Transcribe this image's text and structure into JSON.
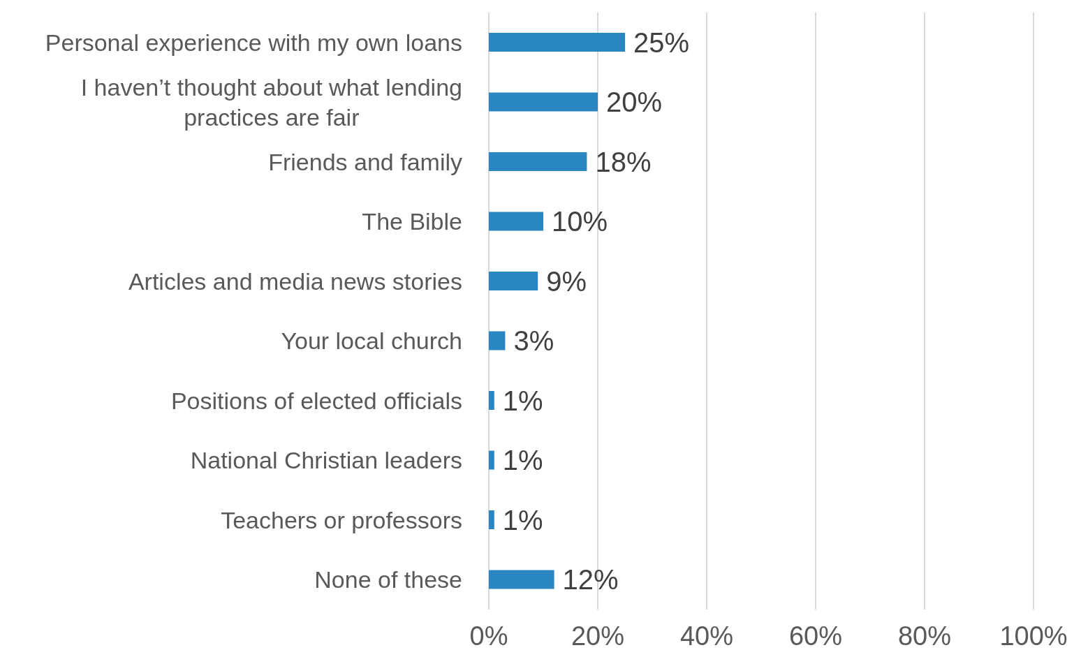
{
  "chart_data": {
    "type": "bar",
    "orientation": "horizontal",
    "categories": [
      "Personal experience with my own loans",
      "I haven’t thought about what lending practices are fair",
      "Friends and family",
      "The Bible",
      "Articles and media news stories",
      "Your local church",
      "Positions of elected officials",
      "National Christian leaders",
      "Teachers or professors",
      "None of these"
    ],
    "values": [
      25,
      20,
      18,
      10,
      9,
      3,
      1,
      1,
      1,
      12
    ],
    "value_labels": [
      "25%",
      "20%",
      "18%",
      "10%",
      "9%",
      "3%",
      "1%",
      "1%",
      "1%",
      "12%"
    ],
    "color": "#2a86c2",
    "xlim": [
      0,
      100
    ],
    "xticks": [
      {
        "value": 0,
        "label": "0%"
      },
      {
        "value": 20,
        "label": "20%"
      },
      {
        "value": 40,
        "label": "40%"
      },
      {
        "value": 60,
        "label": "60%"
      },
      {
        "value": 80,
        "label": "80%"
      },
      {
        "value": 100,
        "label": "100%"
      }
    ],
    "grid": "x",
    "legend": false
  }
}
